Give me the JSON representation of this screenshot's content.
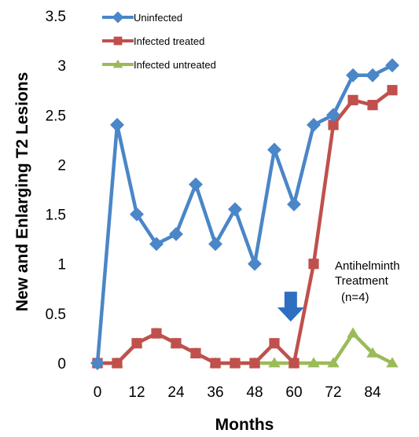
{
  "chart_data": {
    "type": "line",
    "title": "",
    "xlabel": "Months",
    "ylabel": "New and Enlarging T2 Lesions",
    "xlim": [
      0,
      90
    ],
    "ylim": [
      0,
      3.5
    ],
    "x_ticks": [
      0,
      12,
      24,
      36,
      48,
      60,
      72,
      84
    ],
    "x_tick_labels": [
      "0",
      "12",
      "24",
      "36",
      "48",
      "60",
      "72",
      "84"
    ],
    "y_ticks": [
      0,
      0.5,
      1,
      1.5,
      2,
      2.5,
      3,
      3.5
    ],
    "y_tick_labels": [
      "0",
      "0.5",
      "1",
      "1.5",
      "2",
      "2.5",
      "3",
      "3.5"
    ],
    "grid": false,
    "legend_position": "top-left",
    "x": [
      0,
      6,
      12,
      18,
      24,
      30,
      36,
      42,
      48,
      54,
      60,
      66,
      72,
      78,
      84,
      90
    ],
    "series": [
      {
        "name": "Uninfected",
        "color": "#4a86c8",
        "marker": "diamond",
        "values": [
          0,
          2.4,
          1.5,
          1.2,
          1.3,
          1.8,
          1.2,
          1.55,
          1.0,
          2.15,
          1.6,
          2.4,
          2.5,
          2.9,
          2.9,
          3.0
        ]
      },
      {
        "name": "Infected treated",
        "color": "#c0504d",
        "marker": "square",
        "values": [
          0,
          0,
          0.2,
          0.3,
          0.2,
          0.1,
          0,
          0,
          0,
          0.2,
          0,
          1.0,
          2.4,
          2.65,
          2.6,
          2.75
        ]
      },
      {
        "name": "Infected untreated",
        "color": "#9bbb59",
        "marker": "triangle",
        "values": [
          0,
          0,
          0.2,
          0.3,
          0.2,
          0.1,
          0,
          0,
          0,
          0,
          0,
          0,
          0,
          0.3,
          0.1,
          0
        ]
      }
    ],
    "annotations": [
      {
        "lines": [
          "Antihelminth",
          "Treatment",
          "(n=4)"
        ],
        "arrow_x": 59,
        "arrow_y": 0.45,
        "arrow_color": "#2e6fc0"
      }
    ]
  }
}
